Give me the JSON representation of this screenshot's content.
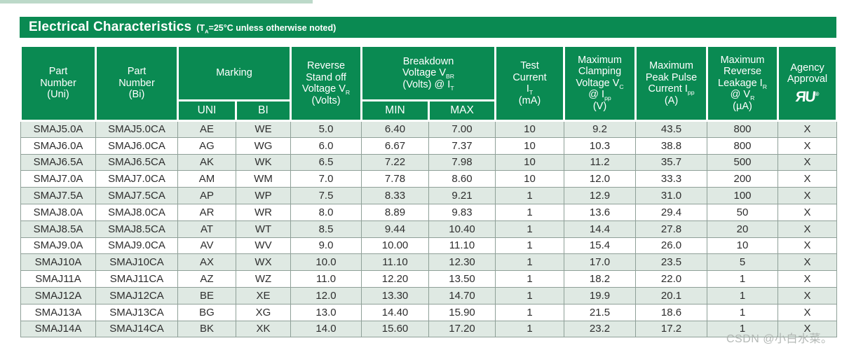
{
  "colors": {
    "accent_green": "#0a8a52",
    "row_alt_green": "#dfe9e3",
    "grid_line": "#8fa098",
    "top_stripe": "#bcd9c9"
  },
  "title": {
    "main": "Electrical Characteristics",
    "cond_pre": "(T",
    "cond_sub": "A",
    "cond_rest": "=25°C unless otherwise noted)"
  },
  "table": {
    "header": {
      "part_uni": {
        "l1": "Part",
        "l2": "Number",
        "l3": "(Uni)"
      },
      "part_bi": {
        "l1": "Part",
        "l2": "Number",
        "l3": "(Bi)"
      },
      "marking": "Marking",
      "uni": "UNI",
      "bi": "BI",
      "vr": {
        "l1": "Reverse",
        "l2": "Stand off",
        "l3": "Voltage V",
        "l3sub": "R",
        "l4": "(Volts)"
      },
      "vbr": {
        "l1": "Breakdown",
        "l2": "Voltage V",
        "l2sub": "BR",
        "l3": "(Volts) @ I",
        "l3sub": "T"
      },
      "min": "MIN",
      "max": "MAX",
      "it": {
        "l1": "Test",
        "l2": "Current",
        "l3": "I",
        "l3sub": "T",
        "l4": "(mA)"
      },
      "vc": {
        "l1": "Maximum",
        "l2": "Clamping",
        "l3": "Voltage V",
        "l3sub": "C",
        "l4": "@ I",
        "l4sub": "pp",
        "l5": "(V)"
      },
      "ipp": {
        "l1": "Maximum",
        "l2": "Peak Pulse",
        "l3": "Current I",
        "l3sub": "pp",
        "l4": "(A)"
      },
      "ir": {
        "l1": "Maximum",
        "l2": "Reverse",
        "l3": "Leakage I",
        "l3sub": "R",
        "l4": "@ V",
        "l4sub": "R",
        "l5": "(µA)"
      },
      "agency": {
        "l1": "Agency",
        "l2": "Approval",
        "logo_r": "Я",
        "logo_u": "U",
        "logo_reg": "®"
      }
    },
    "rows": [
      [
        "SMAJ5.0A",
        "SMAJ5.0CA",
        "AE",
        "WE",
        "5.0",
        "6.40",
        "7.00",
        "10",
        "9.2",
        "43.5",
        "800",
        "X"
      ],
      [
        "SMAJ6.0A",
        "SMAJ6.0CA",
        "AG",
        "WG",
        "6.0",
        "6.67",
        "7.37",
        "10",
        "10.3",
        "38.8",
        "800",
        "X"
      ],
      [
        "SMAJ6.5A",
        "SMAJ6.5CA",
        "AK",
        "WK",
        "6.5",
        "7.22",
        "7.98",
        "10",
        "11.2",
        "35.7",
        "500",
        "X"
      ],
      [
        "SMAJ7.0A",
        "SMAJ7.0CA",
        "AM",
        "WM",
        "7.0",
        "7.78",
        "8.60",
        "10",
        "12.0",
        "33.3",
        "200",
        "X"
      ],
      [
        "SMAJ7.5A",
        "SMAJ7.5CA",
        "AP",
        "WP",
        "7.5",
        "8.33",
        "9.21",
        "1",
        "12.9",
        "31.0",
        "100",
        "X"
      ],
      [
        "SMAJ8.0A",
        "SMAJ8.0CA",
        "AR",
        "WR",
        "8.0",
        "8.89",
        "9.83",
        "1",
        "13.6",
        "29.4",
        "50",
        "X"
      ],
      [
        "SMAJ8.5A",
        "SMAJ8.5CA",
        "AT",
        "WT",
        "8.5",
        "9.44",
        "10.40",
        "1",
        "14.4",
        "27.8",
        "20",
        "X"
      ],
      [
        "SMAJ9.0A",
        "SMAJ9.0CA",
        "AV",
        "WV",
        "9.0",
        "10.00",
        "11.10",
        "1",
        "15.4",
        "26.0",
        "10",
        "X"
      ],
      [
        "SMAJ10A",
        "SMAJ10CA",
        "AX",
        "WX",
        "10.0",
        "11.10",
        "12.30",
        "1",
        "17.0",
        "23.5",
        "5",
        "X"
      ],
      [
        "SMAJ11A",
        "SMAJ11CA",
        "AZ",
        "WZ",
        "11.0",
        "12.20",
        "13.50",
        "1",
        "18.2",
        "22.0",
        "1",
        "X"
      ],
      [
        "SMAJ12A",
        "SMAJ12CA",
        "BE",
        "XE",
        "12.0",
        "13.30",
        "14.70",
        "1",
        "19.9",
        "20.1",
        "1",
        "X"
      ],
      [
        "SMAJ13A",
        "SMAJ13CA",
        "BG",
        "XG",
        "13.0",
        "14.40",
        "15.90",
        "1",
        "21.5",
        "18.6",
        "1",
        "X"
      ],
      [
        "SMAJ14A",
        "SMAJ14CA",
        "BK",
        "XK",
        "14.0",
        "15.60",
        "17.20",
        "1",
        "23.2",
        "17.2",
        "1",
        "X"
      ]
    ]
  },
  "watermark": {
    "text": "CSDN @小白水菜。"
  }
}
